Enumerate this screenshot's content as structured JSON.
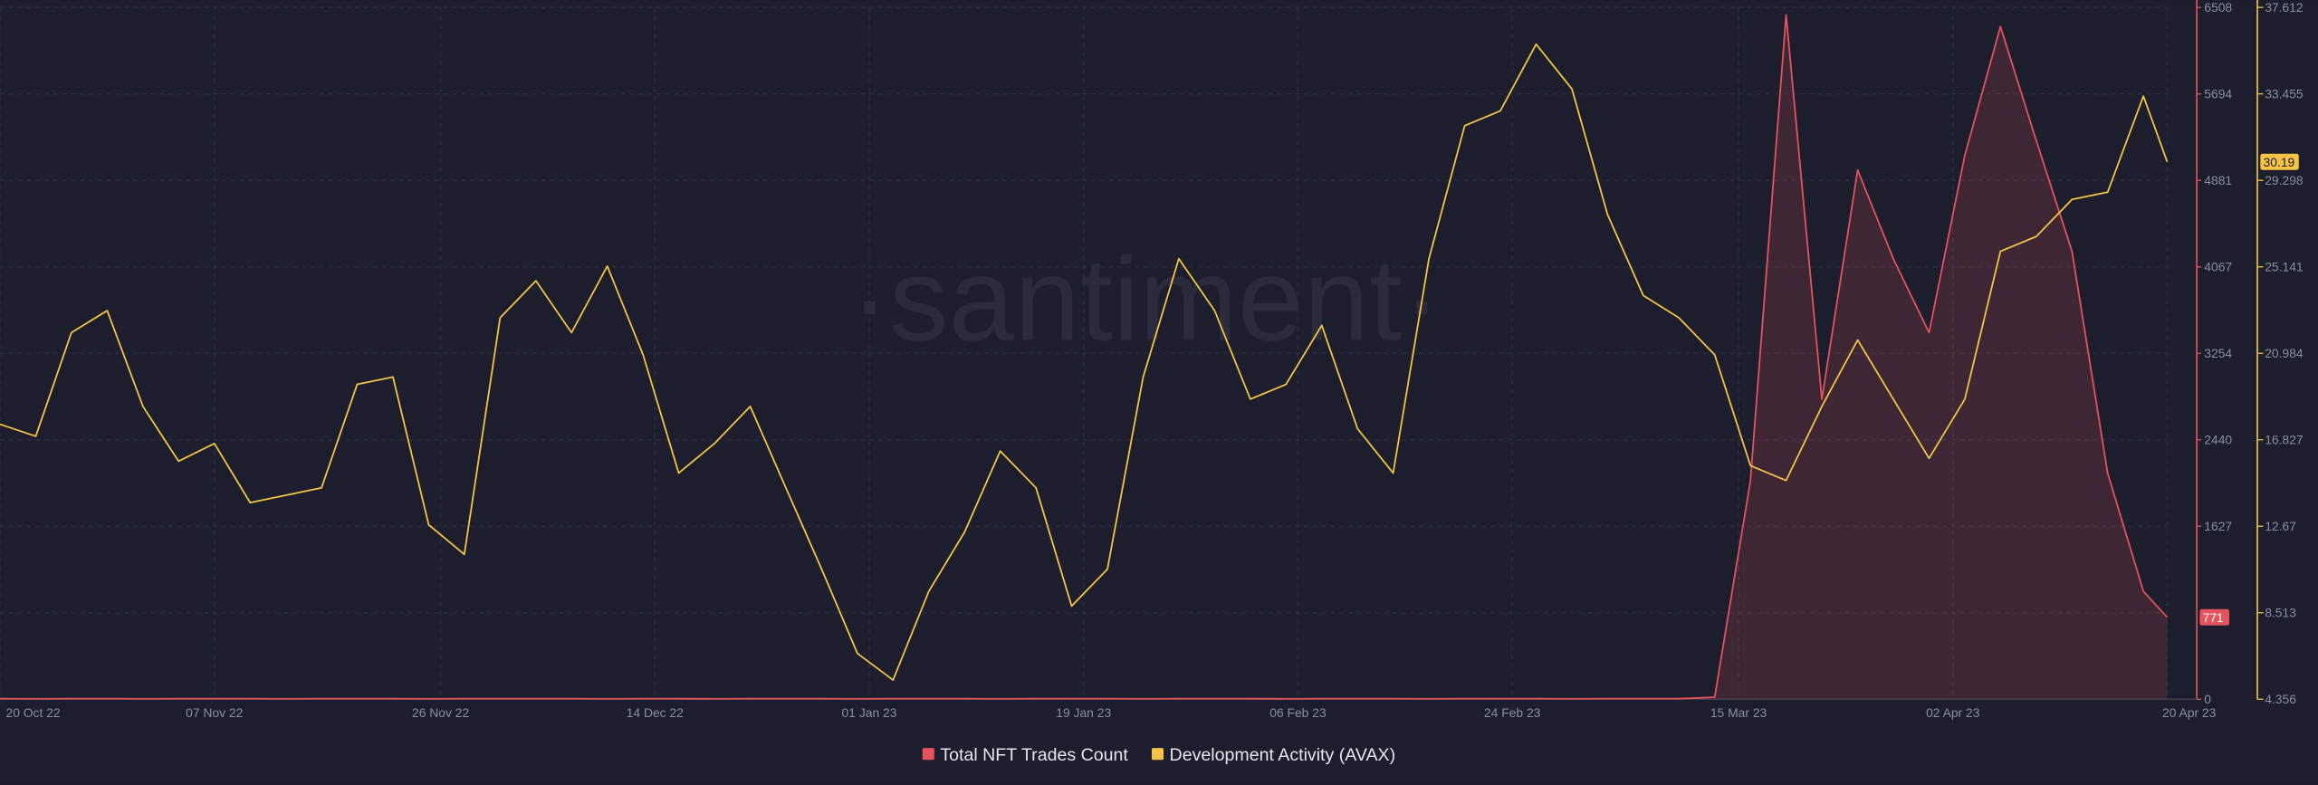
{
  "chart_data": {
    "type": "line",
    "watermark": "·santiment·",
    "x": [
      "2022-10-20",
      "2022-10-23",
      "2022-10-26",
      "2022-10-29",
      "2022-11-01",
      "2022-11-04",
      "2022-11-07",
      "2022-11-10",
      "2022-11-13",
      "2022-11-16",
      "2022-11-19",
      "2022-11-22",
      "2022-11-25",
      "2022-11-28",
      "2022-12-01",
      "2022-12-04",
      "2022-12-07",
      "2022-12-10",
      "2022-12-13",
      "2022-12-16",
      "2022-12-19",
      "2022-12-22",
      "2022-12-25",
      "2022-12-28",
      "2022-12-31",
      "2023-01-03",
      "2023-01-06",
      "2023-01-09",
      "2023-01-12",
      "2023-01-15",
      "2023-01-18",
      "2023-01-21",
      "2023-01-24",
      "2023-01-27",
      "2023-01-30",
      "2023-02-02",
      "2023-02-05",
      "2023-02-08",
      "2023-02-11",
      "2023-02-14",
      "2023-02-17",
      "2023-02-20",
      "2023-02-23",
      "2023-02-26",
      "2023-03-01",
      "2023-03-04",
      "2023-03-07",
      "2023-03-10",
      "2023-03-13",
      "2023-03-16",
      "2023-03-19",
      "2023-03-22",
      "2023-03-25",
      "2023-03-28",
      "2023-03-31",
      "2023-04-03",
      "2023-04-06",
      "2023-04-09",
      "2023-04-12",
      "2023-04-15",
      "2023-04-18",
      "2023-04-20"
    ],
    "xlim": [
      "2022-10-20",
      "2023-04-20"
    ],
    "xticks": [
      {
        "value": "2022-10-20",
        "label": "20 Oct 22"
      },
      {
        "value": "2022-11-07",
        "label": "07 Nov 22"
      },
      {
        "value": "2022-11-26",
        "label": "26 Nov 22"
      },
      {
        "value": "2022-12-14",
        "label": "14 Dec 22"
      },
      {
        "value": "2023-01-01",
        "label": "01 Jan 23"
      },
      {
        "value": "2023-01-19",
        "label": "19 Jan 23"
      },
      {
        "value": "2023-02-06",
        "label": "06 Feb 23"
      },
      {
        "value": "2023-02-24",
        "label": "24 Feb 23"
      },
      {
        "value": "2023-03-15",
        "label": "15 Mar 23"
      },
      {
        "value": "2023-04-02",
        "label": "02 Apr 23"
      },
      {
        "value": "2023-04-20",
        "label": "20 Apr 23"
      }
    ],
    "ylim": [
      0,
      6508
    ],
    "yticks": [
      0,
      1627,
      2440,
      3254,
      4067,
      4881,
      5694,
      6508
    ],
    "y2lim": [
      4.356,
      37.612
    ],
    "y2ticks": [
      4.356,
      8.513,
      12.67,
      16.827,
      20.984,
      25.141,
      29.298,
      33.455,
      37.612
    ],
    "grid": true,
    "series": [
      {
        "name": "Total NFT Trades Count",
        "color": "#e5545c",
        "area": true,
        "values": [
          5,
          4,
          6,
          5,
          4,
          5,
          6,
          5,
          4,
          5,
          6,
          5,
          4,
          5,
          6,
          5,
          5,
          4,
          6,
          5,
          4,
          5,
          6,
          5,
          4,
          5,
          6,
          5,
          4,
          5,
          6,
          5,
          4,
          5,
          6,
          5,
          4,
          5,
          6,
          5,
          4,
          5,
          6,
          5,
          4,
          5,
          6,
          5,
          20,
          2058,
          6438,
          2823,
          4978,
          4144,
          3449,
          5117,
          6327,
          5256,
          4213,
          2127,
          1015,
          771
        ]
      },
      {
        "name": "Development Activity (AVAX)",
        "color": "#f6c445",
        "axis": "y2",
        "values": [
          17.57,
          17.0,
          21.98,
          23.04,
          18.43,
          15.8,
          16.65,
          13.81,
          14.16,
          14.52,
          19.49,
          19.85,
          12.74,
          11.32,
          22.69,
          24.47,
          21.98,
          25.18,
          20.91,
          15.23,
          16.65,
          18.43,
          14.52,
          10.61,
          6.56,
          5.28,
          9.54,
          12.39,
          16.29,
          14.52,
          8.83,
          10.61,
          19.85,
          25.53,
          23.04,
          18.78,
          19.49,
          22.33,
          17.36,
          15.23,
          25.53,
          31.93,
          32.64,
          35.84,
          33.7,
          27.66,
          23.76,
          22.69,
          20.91,
          15.58,
          14.87,
          18.43,
          21.62,
          18.78,
          15.94,
          18.78,
          25.89,
          26.6,
          28.38,
          28.73,
          33.35,
          30.19
        ]
      }
    ]
  }
}
